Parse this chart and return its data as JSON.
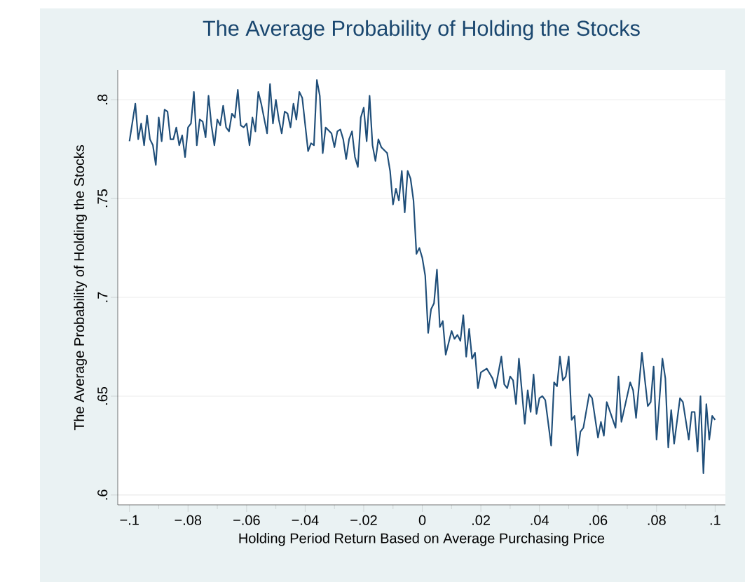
{
  "chart_data": {
    "type": "line",
    "title": "The Average Probability of Holding the Stocks",
    "xlabel": "Holding Period Return Based on Average Purchasing Price",
    "ylabel": "The Average Probability of Holding the Stocks",
    "x": [
      -0.1,
      -0.098,
      -0.097,
      -0.096,
      -0.095,
      -0.094,
      -0.093,
      -0.092,
      -0.091,
      -0.09,
      -0.089,
      -0.088,
      -0.087,
      -0.086,
      -0.085,
      -0.084,
      -0.083,
      -0.082,
      -0.081,
      -0.08,
      -0.079,
      -0.078,
      -0.077,
      -0.076,
      -0.075,
      -0.074,
      -0.073,
      -0.072,
      -0.071,
      -0.07,
      -0.069,
      -0.068,
      -0.067,
      -0.066,
      -0.065,
      -0.064,
      -0.063,
      -0.062,
      -0.061,
      -0.06,
      -0.059,
      -0.058,
      -0.057,
      -0.056,
      -0.055,
      -0.053,
      -0.052,
      -0.051,
      -0.05,
      -0.049,
      -0.048,
      -0.047,
      -0.046,
      -0.045,
      -0.044,
      -0.043,
      -0.042,
      -0.041,
      -0.039,
      -0.038,
      -0.037,
      -0.036,
      -0.035,
      -0.034,
      -0.033,
      -0.031,
      -0.03,
      -0.029,
      -0.028,
      -0.027,
      -0.026,
      -0.025,
      -0.024,
      -0.023,
      -0.022,
      -0.021,
      -0.02,
      -0.019,
      -0.018,
      -0.017,
      -0.016,
      -0.015,
      -0.014,
      -0.012,
      -0.011,
      -0.01,
      -0.009,
      -0.008,
      -0.007,
      -0.006,
      -0.005,
      -0.004,
      -0.003,
      -0.002,
      -0.001,
      0.0,
      0.001,
      0.002,
      0.003,
      0.004,
      0.005,
      0.006,
      0.007,
      0.008,
      0.01,
      0.011,
      0.012,
      0.013,
      0.014,
      0.015,
      0.016,
      0.017,
      0.018,
      0.019,
      0.02,
      0.022,
      0.024,
      0.025,
      0.027,
      0.028,
      0.029,
      0.03,
      0.031,
      0.032,
      0.033,
      0.035,
      0.036,
      0.037,
      0.038,
      0.039,
      0.04,
      0.041,
      0.042,
      0.044,
      0.045,
      0.046,
      0.047,
      0.048,
      0.049,
      0.05,
      0.051,
      0.052,
      0.053,
      0.054,
      0.055,
      0.057,
      0.058,
      0.06,
      0.061,
      0.062,
      0.063,
      0.066,
      0.067,
      0.068,
      0.071,
      0.072,
      0.073,
      0.075,
      0.077,
      0.078,
      0.079,
      0.08,
      0.082,
      0.083,
      0.084,
      0.085,
      0.086,
      0.088,
      0.089,
      0.091,
      0.092,
      0.093,
      0.094,
      0.095,
      0.096,
      0.097,
      0.098,
      0.099,
      0.1
    ],
    "series": [
      {
        "color": "#1f4e79",
        "values": [
          0.779,
          0.798,
          0.78,
          0.788,
          0.777,
          0.792,
          0.78,
          0.777,
          0.767,
          0.791,
          0.779,
          0.795,
          0.794,
          0.78,
          0.78,
          0.786,
          0.777,
          0.782,
          0.771,
          0.786,
          0.788,
          0.804,
          0.777,
          0.79,
          0.789,
          0.781,
          0.802,
          0.787,
          0.777,
          0.79,
          0.787,
          0.797,
          0.786,
          0.784,
          0.793,
          0.791,
          0.805,
          0.787,
          0.786,
          0.788,
          0.777,
          0.791,
          0.784,
          0.804,
          0.798,
          0.783,
          0.808,
          0.788,
          0.8,
          0.79,
          0.783,
          0.794,
          0.793,
          0.786,
          0.798,
          0.79,
          0.804,
          0.801,
          0.774,
          0.778,
          0.777,
          0.81,
          0.802,
          0.773,
          0.786,
          0.783,
          0.776,
          0.784,
          0.785,
          0.78,
          0.77,
          0.78,
          0.784,
          0.771,
          0.766,
          0.791,
          0.796,
          0.779,
          0.802,
          0.777,
          0.769,
          0.78,
          0.776,
          0.773,
          0.764,
          0.747,
          0.755,
          0.749,
          0.764,
          0.743,
          0.764,
          0.76,
          0.749,
          0.722,
          0.725,
          0.72,
          0.711,
          0.682,
          0.694,
          0.697,
          0.714,
          0.685,
          0.688,
          0.671,
          0.683,
          0.679,
          0.681,
          0.678,
          0.691,
          0.67,
          0.684,
          0.669,
          0.672,
          0.654,
          0.662,
          0.664,
          0.659,
          0.654,
          0.67,
          0.656,
          0.654,
          0.66,
          0.658,
          0.646,
          0.669,
          0.636,
          0.653,
          0.642,
          0.661,
          0.641,
          0.649,
          0.65,
          0.648,
          0.625,
          0.657,
          0.655,
          0.67,
          0.658,
          0.66,
          0.67,
          0.638,
          0.64,
          0.62,
          0.632,
          0.634,
          0.651,
          0.649,
          0.629,
          0.637,
          0.63,
          0.647,
          0.634,
          0.66,
          0.637,
          0.657,
          0.653,
          0.639,
          0.672,
          0.645,
          0.647,
          0.665,
          0.628,
          0.669,
          0.659,
          0.624,
          0.643,
          0.626,
          0.649,
          0.647,
          0.628,
          0.642,
          0.642,
          0.622,
          0.65,
          0.611,
          0.646,
          0.628,
          0.64,
          0.638
        ]
      }
    ],
    "xlim": [
      -0.104,
      0.1035
    ],
    "ylim": [
      0.595,
      0.815
    ],
    "xticks": [
      {
        "value": -0.1,
        "label": "−.1"
      },
      {
        "value": -0.08,
        "label": "−.08"
      },
      {
        "value": -0.06,
        "label": "−.06"
      },
      {
        "value": -0.04,
        "label": "−.04"
      },
      {
        "value": -0.02,
        "label": "−.02"
      },
      {
        "value": 0,
        "label": "0"
      },
      {
        "value": 0.02,
        "label": ".02"
      },
      {
        "value": 0.04,
        "label": ".04"
      },
      {
        "value": 0.06,
        "label": ".06"
      },
      {
        "value": 0.08,
        "label": ".08"
      },
      {
        "value": 0.1,
        "label": ".1"
      }
    ],
    "yticks": [
      {
        "value": 0.6,
        "label": ".6"
      },
      {
        "value": 0.65,
        "label": ".65"
      },
      {
        "value": 0.7,
        "label": ".7"
      },
      {
        "value": 0.75,
        "label": ".75"
      },
      {
        "value": 0.8,
        "label": ".8"
      }
    ],
    "grid": "y",
    "line_style": "solid",
    "marker": "none"
  }
}
